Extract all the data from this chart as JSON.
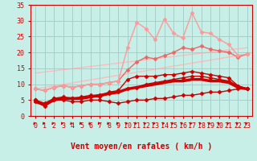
{
  "background_color": "#c8eee8",
  "grid_color": "#a0ccc4",
  "xlabel": "Vent moyen/en rafales ( km/h )",
  "xlim": [
    -0.5,
    23.5
  ],
  "ylim": [
    0,
    35
  ],
  "yticks": [
    0,
    5,
    10,
    15,
    20,
    25,
    30,
    35
  ],
  "xticks": [
    0,
    1,
    2,
    3,
    4,
    5,
    6,
    7,
    8,
    9,
    10,
    11,
    12,
    13,
    14,
    15,
    16,
    17,
    18,
    19,
    20,
    21,
    22,
    23
  ],
  "series": [
    {
      "x": [
        0,
        23
      ],
      "y": [
        8.5,
        19.5
      ],
      "color": "#ffbbbb",
      "linewidth": 1.0,
      "marker": null,
      "zorder": 1
    },
    {
      "x": [
        0,
        23
      ],
      "y": [
        13.5,
        21.5
      ],
      "color": "#ffbbbb",
      "linewidth": 1.0,
      "marker": null,
      "zorder": 1
    },
    {
      "x": [
        0,
        1,
        2,
        3,
        4,
        5,
        6,
        7,
        8,
        9,
        10,
        11,
        12,
        13,
        14,
        15,
        16,
        17,
        18,
        19,
        20,
        21,
        22,
        23
      ],
      "y": [
        4.5,
        3.5,
        5.0,
        5.5,
        5.5,
        5.5,
        6.0,
        6.5,
        7.0,
        7.5,
        8.5,
        9.0,
        9.5,
        10.0,
        10.5,
        11.0,
        11.0,
        11.5,
        11.5,
        11.0,
        11.0,
        10.5,
        9.0,
        8.5
      ],
      "color": "#cc0000",
      "linewidth": 2.5,
      "marker": null,
      "zorder": 4
    },
    {
      "x": [
        0,
        1,
        2,
        3,
        4,
        5,
        6,
        7,
        8,
        9,
        10,
        11,
        12,
        13,
        14,
        15,
        16,
        17,
        18,
        19,
        20,
        21,
        22,
        23
      ],
      "y": [
        5.0,
        3.5,
        5.5,
        5.5,
        5.5,
        5.5,
        6.0,
        6.0,
        7.0,
        7.5,
        8.5,
        9.0,
        10.0,
        10.5,
        11.0,
        11.5,
        12.0,
        12.5,
        12.5,
        12.0,
        11.5,
        11.0,
        9.5,
        8.5
      ],
      "color": "#cc0000",
      "linewidth": 1.0,
      "marker": "D",
      "markersize": 2.5,
      "zorder": 3
    },
    {
      "x": [
        0,
        1,
        2,
        3,
        4,
        5,
        6,
        7,
        8,
        9,
        10,
        11,
        12,
        13,
        14,
        15,
        16,
        17,
        18,
        19,
        20,
        21,
        22,
        23
      ],
      "y": [
        5.0,
        4.0,
        5.5,
        6.0,
        5.5,
        6.0,
        6.5,
        6.5,
        7.5,
        8.0,
        11.5,
        12.5,
        12.5,
        12.5,
        13.0,
        13.0,
        13.5,
        14.0,
        13.5,
        13.0,
        12.5,
        12.0,
        9.5,
        8.5
      ],
      "color": "#cc0000",
      "linewidth": 1.0,
      "marker": "D",
      "markersize": 2.5,
      "zorder": 3
    },
    {
      "x": [
        0,
        1,
        2,
        3,
        4,
        5,
        6,
        7,
        8,
        9,
        10,
        11,
        12,
        13,
        14,
        15,
        16,
        17,
        18,
        19,
        20,
        21,
        22,
        23
      ],
      "y": [
        8.5,
        8.0,
        9.0,
        9.5,
        9.0,
        9.5,
        10.0,
        10.0,
        10.5,
        11.0,
        14.5,
        17.0,
        18.5,
        18.0,
        19.0,
        20.0,
        21.5,
        21.0,
        22.0,
        21.0,
        20.5,
        20.0,
        18.5,
        19.5
      ],
      "color": "#ee6666",
      "linewidth": 1.0,
      "marker": "D",
      "markersize": 2.5,
      "zorder": 2
    },
    {
      "x": [
        0,
        1,
        2,
        3,
        4,
        5,
        6,
        7,
        8,
        9,
        10,
        11,
        12,
        13,
        14,
        15,
        16,
        17,
        18,
        19,
        20,
        21,
        22,
        23
      ],
      "y": [
        8.5,
        8.0,
        9.0,
        9.5,
        9.0,
        9.5,
        10.0,
        10.0,
        10.5,
        11.0,
        21.5,
        29.5,
        27.5,
        24.0,
        30.5,
        26.0,
        24.5,
        32.5,
        26.5,
        26.0,
        24.0,
        22.5,
        19.0,
        19.5
      ],
      "color": "#ff9999",
      "linewidth": 1.0,
      "marker": "D",
      "markersize": 2.5,
      "zorder": 2
    },
    {
      "x": [
        0,
        1,
        2,
        3,
        4,
        5,
        6,
        7,
        8,
        9,
        10,
        11,
        12,
        13,
        14,
        15,
        16,
        17,
        18,
        19,
        20,
        21,
        22,
        23
      ],
      "y": [
        4.5,
        3.0,
        5.0,
        5.0,
        4.5,
        4.5,
        5.0,
        5.0,
        4.5,
        4.0,
        4.5,
        5.0,
        5.0,
        5.5,
        5.5,
        6.0,
        6.5,
        6.5,
        7.0,
        7.5,
        7.5,
        8.0,
        8.5,
        8.5
      ],
      "color": "#cc0000",
      "linewidth": 1.0,
      "marker": "D",
      "markersize": 2.5,
      "zorder": 3
    }
  ],
  "tick_arrow_color": "#cc0000",
  "axis_color": "#cc0000",
  "label_color": "#cc0000",
  "tick_label_color": "#cc0000",
  "xlabel_fontsize": 7,
  "tick_fontsize": 6
}
